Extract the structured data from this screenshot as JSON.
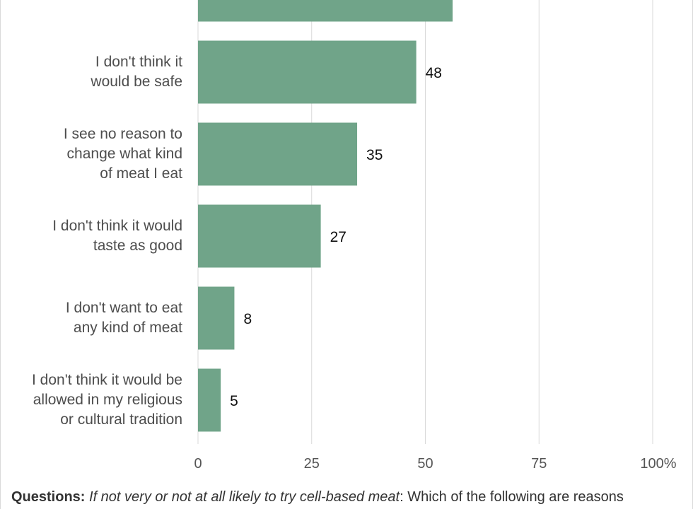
{
  "chart_data": {
    "type": "bar",
    "orientation": "horizontal",
    "categories": [
      "",
      "I don't think it\nwould be safe",
      "I see no reason to\nchange what kind\nof meat I eat",
      "I don't think it would\ntaste as good",
      "I don't want to eat\nany kind of meat",
      "I don't think it would be\nallowed in my religious\nor cultural tradition"
    ],
    "values": [
      56,
      48,
      35,
      27,
      8,
      5
    ],
    "value_labels": [
      "",
      "48",
      "35",
      "27",
      "8",
      "5"
    ],
    "x_ticks": [
      "0",
      "25",
      "50",
      "75",
      "100%"
    ],
    "xlim": [
      0,
      100
    ],
    "grid": true,
    "bar_color": "#70a489"
  },
  "footnote": {
    "lead": "Questions:",
    "italic": "If not very or not at all likely to try cell-based meat",
    "rest": ": Which of the following are reasons"
  }
}
